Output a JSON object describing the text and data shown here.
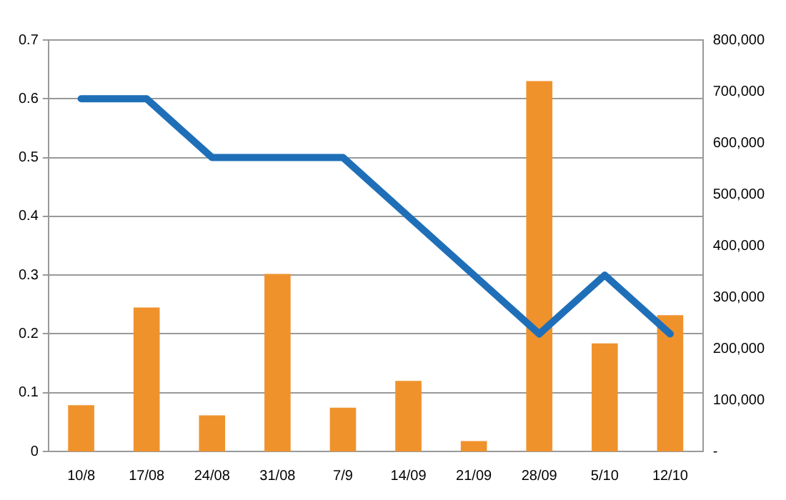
{
  "chart_data": {
    "type": "bar",
    "categories": [
      "10/8",
      "17/08",
      "24/08",
      "31/08",
      "7/9",
      "14/09",
      "21/09",
      "28/09",
      "5/10",
      "12/10"
    ],
    "series": [
      {
        "axis": "y2",
        "color": "#f0922c",
        "values": [
          90000,
          280000,
          70000,
          345000,
          85000,
          137000,
          20000,
          720000,
          210000,
          265000
        ]
      },
      {
        "type": "line",
        "color": "#1f6fb8",
        "values": [
          0.6,
          0.6,
          0.5,
          0.5,
          0.5,
          0.4,
          0.3,
          0.2,
          0.3,
          0.2
        ]
      }
    ],
    "ylim": [
      0,
      0.7
    ],
    "yticks": [
      0,
      0.1,
      0.2,
      0.3,
      0.4,
      0.5,
      0.6,
      0.7
    ],
    "y2lim": [
      0,
      800000
    ],
    "y2ticks": [
      {
        "value": 0,
        "label": "-"
      },
      {
        "value": 100000,
        "label": "100,000"
      },
      {
        "value": 200000,
        "label": "200,000"
      },
      {
        "value": 300000,
        "label": "300,000"
      },
      {
        "value": 400000,
        "label": "400,000"
      },
      {
        "value": 500000,
        "label": "500,000"
      },
      {
        "value": 600000,
        "label": "600,000"
      },
      {
        "value": 700000,
        "label": "700,000"
      },
      {
        "value": 800000,
        "label": "800,000"
      }
    ],
    "grid": "y",
    "legend": false,
    "marker": "none"
  }
}
